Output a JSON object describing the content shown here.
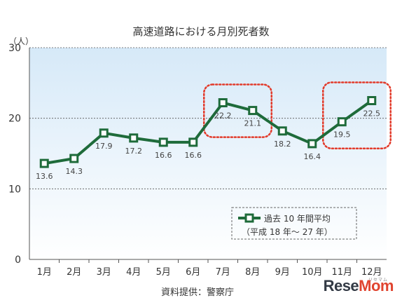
{
  "chart_data": {
    "type": "line",
    "title": "高速道路における月別死者数",
    "ylabel": "（人）",
    "ylim": [
      0,
      30
    ],
    "yticks": [
      0,
      10,
      20,
      30
    ],
    "grid": true,
    "categories": [
      "1月",
      "2月",
      "3月",
      "4月",
      "5月",
      "6月",
      "7月",
      "8月",
      "9月",
      "10月",
      "11月",
      "12月"
    ],
    "series": [
      {
        "name": "過去 10 年間平均",
        "values": [
          13.6,
          14.3,
          17.9,
          17.2,
          16.6,
          16.6,
          22.2,
          21.1,
          18.2,
          16.4,
          19.5,
          22.5
        ],
        "value_labels": [
          "13.6",
          "14.3",
          "17.9",
          "17.2",
          "16.6",
          "16.6",
          "22.2",
          "21.1",
          "18.2",
          "16.4",
          "19.5",
          "22.5"
        ]
      }
    ],
    "legend": {
      "position": "bottom-right",
      "line1": "過去 10 年間平均",
      "line2": "（平成 18 年～ 27 年）"
    },
    "highlight_groups": [
      [
        "7月",
        "8月"
      ],
      [
        "11月",
        "12月"
      ]
    ],
    "colors": {
      "line": "#1e6b3a",
      "highlight": "#e23a2a",
      "background_top": "#d6e9f8",
      "background_bottom": "#ffffff"
    }
  },
  "source": "資料提供：警察庁",
  "watermark": {
    "brand_part1": "Rese",
    "brand_part2": "Mom",
    "sub": "リセマム"
  }
}
